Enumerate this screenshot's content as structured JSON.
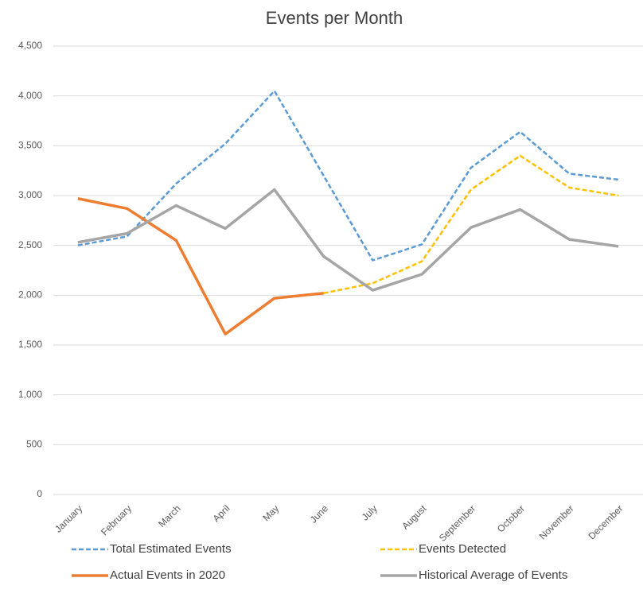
{
  "chart_data": {
    "type": "line",
    "title": "Events per Month",
    "categories": [
      "January",
      "February",
      "March",
      "April",
      "May",
      "June",
      "July",
      "August",
      "September",
      "October",
      "November",
      "December"
    ],
    "series": [
      {
        "name": "Total Estimated Events",
        "color": "#5b9bd5",
        "line_style": "dashed",
        "values": [
          2500,
          2590,
          3120,
          3520,
          4050,
          3200,
          2350,
          2510,
          3280,
          3640,
          3220,
          3160
        ]
      },
      {
        "name": "Events Detected",
        "color": "#ffc000",
        "line_style": "dashed",
        "values": [
          null,
          null,
          null,
          null,
          null,
          2020,
          2120,
          2340,
          3060,
          3400,
          3080,
          3000
        ]
      },
      {
        "name": "Actual Events in 2020",
        "color": "#ed7d31",
        "line_style": "solid",
        "values": [
          2970,
          2870,
          2550,
          1610,
          1970,
          2020,
          null,
          null,
          null,
          null,
          null,
          null
        ]
      },
      {
        "name": "Historical Average of Events",
        "color": "#a5a5a5",
        "line_style": "solid",
        "values": [
          2530,
          2620,
          2900,
          2670,
          3060,
          2390,
          2050,
          2210,
          2680,
          2860,
          2560,
          2490
        ]
      }
    ],
    "ylim": [
      0,
      4500
    ],
    "yticks": [
      0,
      500,
      {
        "value": 1000,
        "label": "1,000"
      },
      {
        "value": 1500,
        "label": "1,500"
      },
      {
        "value": 2000,
        "label": "2,000"
      },
      {
        "value": 2500,
        "label": "2,500"
      },
      {
        "value": 3000,
        "label": "3,000"
      },
      {
        "value": 3500,
        "label": "3,500"
      },
      {
        "value": 4000,
        "label": "4,000"
      },
      {
        "value": 4500,
        "label": "4,500"
      }
    ],
    "grid": true,
    "legend": "bottom"
  }
}
